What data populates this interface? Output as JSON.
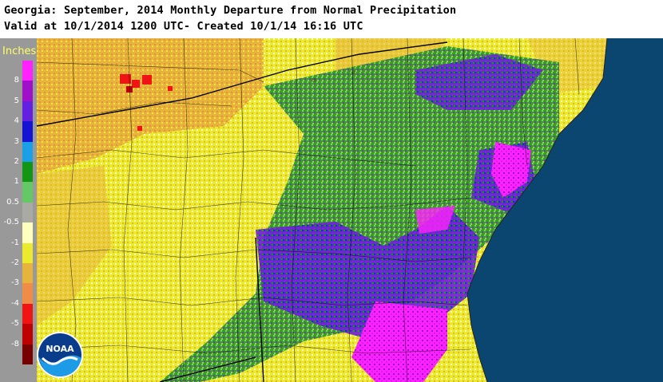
{
  "header": {
    "title_line1": "Georgia: September, 2014 Monthly Departure from Normal Precipitation",
    "title_line2": "Valid at 10/1/2014 1200 UTC- Created 10/1/14 16:16 UTC"
  },
  "legend": {
    "title": "Inches",
    "entries": [
      {
        "label": "8",
        "color": "#ff22ff"
      },
      {
        "label": "5",
        "color": "#a010c8"
      },
      {
        "label": "4",
        "color": "#6420e0"
      },
      {
        "label": "3",
        "color": "#1414d2"
      },
      {
        "label": "2",
        "color": "#19a0e6"
      },
      {
        "label": "1",
        "color": "#139613"
      },
      {
        "label": "0.5",
        "color": "#64c864"
      },
      {
        "label": "-0.5",
        "color": "#aaaaa5"
      },
      {
        "label": "-1",
        "color": "#ffffbe"
      },
      {
        "label": "-2",
        "color": "#ebeb2d"
      },
      {
        "label": "-3",
        "color": "#e6b43c"
      },
      {
        "label": "-4",
        "color": "#f08c46"
      },
      {
        "label": "-5",
        "color": "#f01414"
      },
      {
        "label": "-8",
        "color": "#be0000"
      },
      {
        "label": "",
        "color": "#780000"
      }
    ]
  },
  "map": {
    "ocean_color": "#0a4670",
    "logo_text": "NOAA"
  }
}
